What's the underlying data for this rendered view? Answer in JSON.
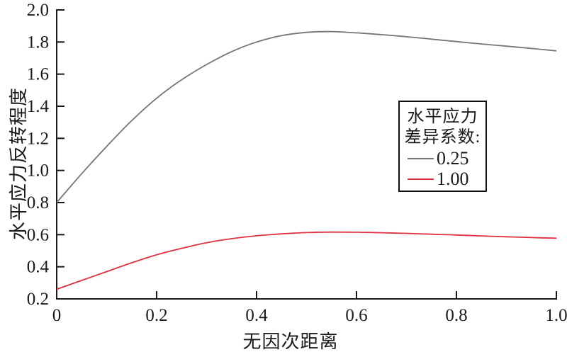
{
  "figure": {
    "background": "#ffffff",
    "axis_color": "#1a1a1a"
  },
  "legend": {
    "title_line1": "水平应力",
    "title_line2": "差异系数:",
    "entries": [
      {
        "label": "0.25",
        "color": "#757575"
      },
      {
        "label": "1.00",
        "color": "#e03140"
      }
    ]
  },
  "chart_data": {
    "type": "line",
    "title": "",
    "xlabel": "无因次距离",
    "ylabel": "水平应力反转程度",
    "xlim": [
      0,
      1.0
    ],
    "ylim": [
      0.2,
      2.0
    ],
    "grid": false,
    "legend_position": "center-right",
    "legend_title": "水平应力差异系数:",
    "xticks": [
      0,
      0.2,
      0.4,
      0.6,
      0.8,
      1.0
    ],
    "xtick_labels": [
      "0",
      "0.2",
      "0.4",
      "0.6",
      "0.8",
      "1.0"
    ],
    "yticks": [
      0.2,
      0.4,
      0.6,
      0.8,
      1.0,
      1.2,
      1.4,
      1.6,
      1.8,
      2.0
    ],
    "ytick_labels": [
      "0.2",
      "0.4",
      "0.6",
      "0.8",
      "1.0",
      "1.2",
      "1.4",
      "1.6",
      "1.8",
      "2.0"
    ],
    "x": [
      0,
      0.05,
      0.1,
      0.15,
      0.2,
      0.25,
      0.3,
      0.35,
      0.4,
      0.45,
      0.5,
      0.55,
      0.6,
      0.65,
      0.7,
      0.75,
      0.8,
      0.85,
      0.9,
      0.95,
      1.0
    ],
    "series": [
      {
        "name": "0.25",
        "color": "#757575",
        "values": [
          0.8,
          0.98,
          1.15,
          1.31,
          1.45,
          1.565,
          1.66,
          1.74,
          1.8,
          1.84,
          1.86,
          1.865,
          1.857,
          1.846,
          1.833,
          1.818,
          1.803,
          1.788,
          1.774,
          1.76,
          1.745
        ]
      },
      {
        "name": "1.00",
        "color": "#e03140",
        "values": [
          0.26,
          0.315,
          0.37,
          0.425,
          0.475,
          0.515,
          0.55,
          0.575,
          0.593,
          0.605,
          0.613,
          0.616,
          0.615,
          0.612,
          0.608,
          0.603,
          0.598,
          0.592,
          0.587,
          0.582,
          0.578
        ]
      }
    ]
  }
}
